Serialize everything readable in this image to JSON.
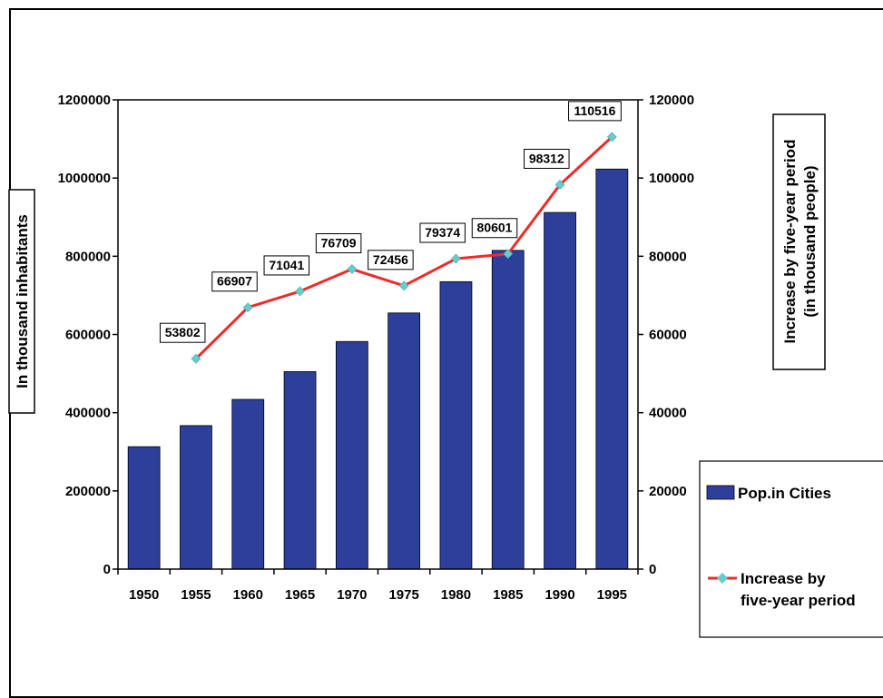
{
  "chart_data": {
    "type": "bar+line",
    "categories": [
      "1950",
      "1955",
      "1960",
      "1965",
      "1970",
      "1975",
      "1980",
      "1985",
      "1990",
      "1995"
    ],
    "series": [
      {
        "name": "Pop.in Cities",
        "type": "bar",
        "axis": "left",
        "color": "#2e3f9b",
        "values": [
          313000,
          367000,
          434000,
          505000,
          582000,
          655000,
          735000,
          815000,
          912000,
          1023000
        ]
      },
      {
        "name": "Increase by five-year period",
        "legend_lines": [
          "Increase by",
          "five-year period"
        ],
        "type": "line",
        "axis": "right",
        "color": "#ee2b2b",
        "marker_color": "#66cccc",
        "values": [
          null,
          53802,
          66907,
          71041,
          76709,
          72456,
          79374,
          80601,
          98312,
          110516
        ]
      }
    ],
    "ylabel": "In thousand inhabitants",
    "y2label_lines": [
      "Increase by five-year period",
      "(in thousand people)"
    ],
    "ylim": [
      0,
      1200000
    ],
    "y2lim": [
      0,
      120000
    ],
    "yticks": [
      "0",
      "200000",
      "400000",
      "600000",
      "800000",
      "1000000",
      "1200000"
    ],
    "y2ticks": [
      "0",
      "20000",
      "40000",
      "60000",
      "80000",
      "100000",
      "120000"
    ],
    "data_labels": [
      "53802",
      "66907",
      "71041",
      "76709",
      "72456",
      "79374",
      "80601",
      "98312",
      "110516"
    ],
    "grid": false,
    "legend_position": "bottom-right"
  }
}
